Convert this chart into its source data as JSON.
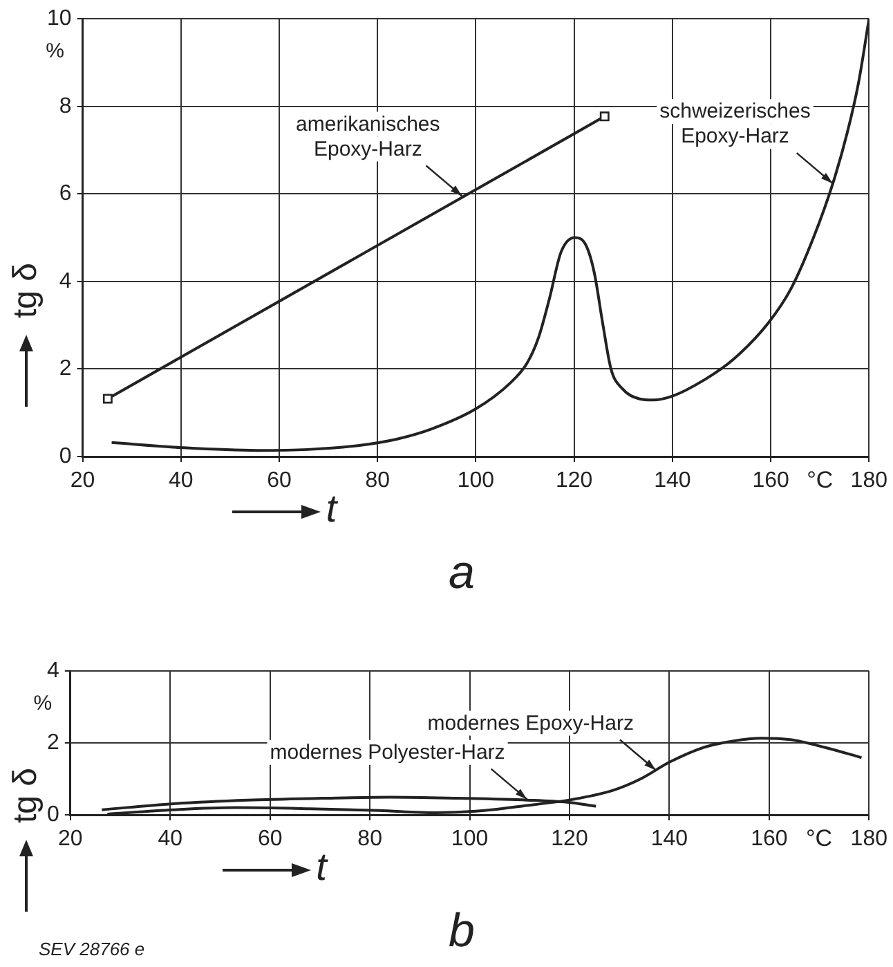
{
  "chart_data": [
    {
      "type": "line",
      "title": "a",
      "xlabel": "t",
      "ylabel": "tg δ",
      "xlim": [
        20,
        180
      ],
      "ylim": [
        0,
        10
      ],
      "xticks": [
        20,
        40,
        60,
        80,
        100,
        120,
        140,
        160,
        180
      ],
      "yticks": [
        0,
        2,
        4,
        6,
        8,
        10
      ],
      "grid": true,
      "legend": false,
      "annotations": [
        "%",
        "°C",
        {
          "text": "amerikanisches\nEpoxy-Harz",
          "x": 97.2,
          "y": 5.95
        },
        {
          "text": "schweizerisches\nEpoxy-Harz",
          "x": 172.6,
          "y": 6.24
        }
      ],
      "series": [
        {
          "color": "#222222",
          "marker": "square",
          "x": [
            25.1,
            126.2
          ],
          "values": [
            1.32,
            7.77
          ]
        },
        {
          "color": "#222222",
          "x": [
            25.9,
            40.6,
            55.5,
            65.8,
            76,
            84,
            91,
            100,
            106.9,
            110.4,
            112.7,
            115,
            117.3,
            120.1,
            122.4,
            124.1,
            125.8,
            127.5,
            129.8,
            133.2,
            136,
            140,
            146.9,
            152.6,
            159.5,
            164.2,
            168.7,
            172.7,
            175.6,
            177.9,
            180
          ],
          "values": [
            0.32,
            0.2,
            0.14,
            0.16,
            0.25,
            0.4,
            0.63,
            1.09,
            1.67,
            2.13,
            2.7,
            3.62,
            4.66,
            5.0,
            4.83,
            4.2,
            3.05,
            2.0,
            1.55,
            1.32,
            1.29,
            1.38,
            1.78,
            2.24,
            3.05,
            3.85,
            5.0,
            6.26,
            7.41,
            8.56,
            10
          ]
        }
      ]
    },
    {
      "type": "line",
      "title": "b",
      "xlabel": "t",
      "ylabel": "tg δ",
      "xlim": [
        20,
        180
      ],
      "ylim": [
        0,
        4
      ],
      "xticks": [
        20,
        40,
        60,
        80,
        100,
        120,
        140,
        160,
        180
      ],
      "yticks": [
        0,
        2,
        4
      ],
      "grid": true,
      "legend": false,
      "annotations": [
        "%",
        "°C",
        "SEV 28766 e",
        {
          "text": "modernes Epoxy-Harz",
          "x": 137.3,
          "y": 1.24
        },
        {
          "text": "modernes Polyester-Harz",
          "x": 111.5,
          "y": 0.43
        }
      ],
      "series": [
        {
          "color": "#222222",
          "x": [
            26.3,
            40.6,
            55.5,
            70.3,
            84.1,
            97.8,
            111.5,
            119.5,
            125.3
          ],
          "values": [
            0.14,
            0.31,
            0.41,
            0.46,
            0.49,
            0.46,
            0.41,
            0.35,
            0.24
          ]
        },
        {
          "color": "#222222",
          "x": [
            27.4,
            40.6,
            53.2,
            68,
            81.8,
            93.2,
            101.2,
            112.7,
            120.7,
            128.7,
            134.4,
            140.1,
            147,
            152.7,
            158.4,
            164.2,
            171,
            178.5
          ],
          "values": [
            0.02,
            0.14,
            0.2,
            0.17,
            0.12,
            0.06,
            0.1,
            0.28,
            0.43,
            0.68,
            1.01,
            1.47,
            1.88,
            2.05,
            2.13,
            2.09,
            1.88,
            1.59
          ]
        }
      ]
    }
  ]
}
